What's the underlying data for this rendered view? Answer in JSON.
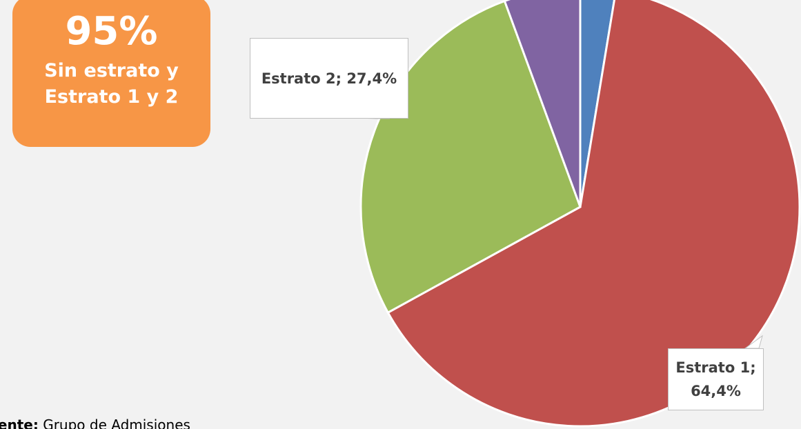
{
  "chart_data": {
    "type": "pie",
    "values": [
      2.6,
      64.4,
      27.4,
      5.6
    ],
    "value_labels": [
      null,
      "Estrato 1; 64,4%",
      "Estrato 2; 27,4%",
      null
    ],
    "colors": [
      "#4f81bd",
      "#c0504d",
      "#9bbb59",
      "#8064a2"
    ]
  },
  "badge": {
    "value": "95%",
    "text": "Sin estrato y Estrato 1 y 2"
  },
  "source": {
    "label": "Fuente:",
    "text": "Grupo de Admisiones"
  }
}
